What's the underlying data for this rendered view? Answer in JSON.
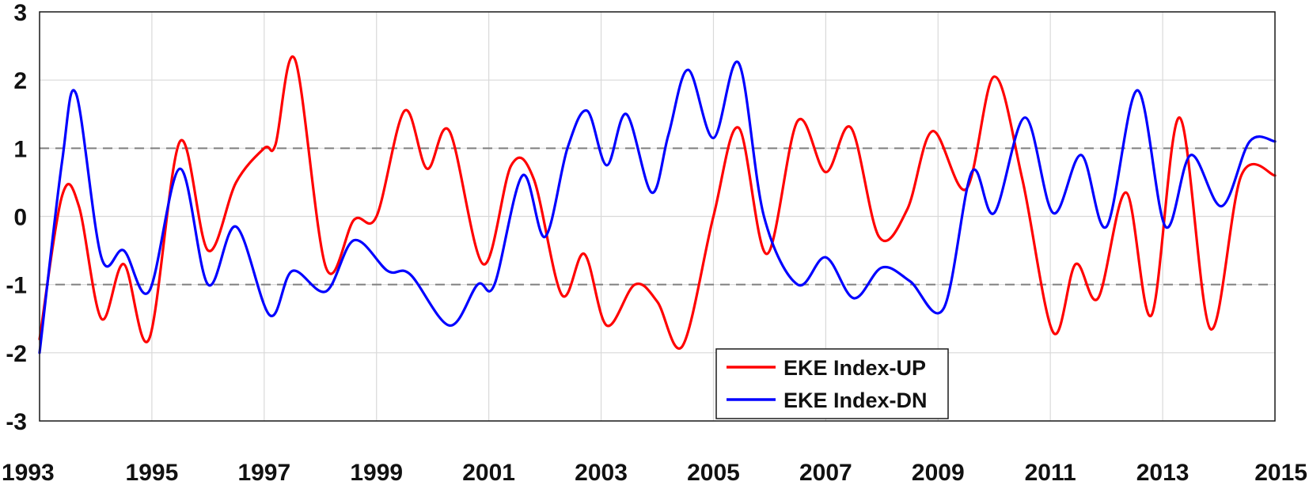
{
  "chart_data": {
    "type": "line",
    "title": "",
    "xlabel": "",
    "ylabel": "",
    "xlim": [
      1993,
      2015
    ],
    "ylim": [
      -3,
      3
    ],
    "grid": true,
    "x_ticks": [
      1993,
      1995,
      1997,
      1999,
      2001,
      2003,
      2005,
      2007,
      2009,
      2011,
      2013,
      2015
    ],
    "x_tick_labels": [
      "1993",
      "1995",
      "1997",
      "1999",
      "2001",
      "2003",
      "2005",
      "2007",
      "2009",
      "2011",
      "2013",
      "2015"
    ],
    "y_ticks": [
      -3,
      -2,
      -1,
      0,
      1,
      2,
      3
    ],
    "y_tick_labels": [
      "-3",
      "-2",
      "-1",
      "0",
      "1",
      "2",
      "3"
    ],
    "reference_lines": [
      1,
      -1
    ],
    "legend_position": "bottom-center",
    "series": [
      {
        "name": "EKE Index-UP",
        "color": "#ff0000",
        "x": [
          1993.0,
          1993.4,
          1993.7,
          1994.1,
          1994.5,
          1994.95,
          1995.5,
          1996.0,
          1996.5,
          1997.0,
          1997.2,
          1997.55,
          1998.1,
          1998.6,
          1999.0,
          1999.5,
          1999.9,
          2000.3,
          2000.9,
          2001.4,
          2001.8,
          2002.3,
          2002.7,
          2003.1,
          2003.6,
          2004.0,
          2004.45,
          2005.0,
          2005.45,
          2005.95,
          2006.5,
          2007.0,
          2007.45,
          2007.95,
          2008.45,
          2008.9,
          2009.5,
          2010.0,
          2010.5,
          2011.05,
          2011.45,
          2011.85,
          2012.35,
          2012.8,
          2013.3,
          2013.85,
          2014.4,
          2015.0
        ],
        "values": [
          -1.8,
          0.3,
          0.15,
          -1.5,
          -0.7,
          -1.8,
          1.1,
          -0.5,
          0.5,
          1.0,
          1.05,
          2.3,
          -0.75,
          -0.05,
          0.0,
          1.55,
          0.7,
          1.25,
          -0.7,
          0.75,
          0.55,
          -1.15,
          -0.55,
          -1.6,
          -1.0,
          -1.25,
          -1.9,
          0.0,
          1.3,
          -0.55,
          1.4,
          0.65,
          1.3,
          -0.3,
          0.1,
          1.25,
          0.4,
          2.05,
          0.55,
          -1.7,
          -0.7,
          -1.2,
          0.35,
          -1.45,
          1.45,
          -1.65,
          0.6,
          0.6
        ]
      },
      {
        "name": "EKE Index-DN",
        "color": "#0000ff",
        "x": [
          1993.0,
          1993.4,
          1993.65,
          1994.1,
          1994.5,
          1994.95,
          1995.5,
          1996.0,
          1996.5,
          1997.1,
          1997.5,
          1998.1,
          1998.6,
          1999.2,
          1999.6,
          2000.3,
          2000.8,
          2001.1,
          2001.6,
          2002.0,
          2002.4,
          2002.75,
          2003.1,
          2003.45,
          2003.9,
          2004.2,
          2004.55,
          2005.0,
          2005.45,
          2005.9,
          2006.5,
          2007.0,
          2007.5,
          2008.0,
          2008.5,
          2009.1,
          2009.6,
          2010.0,
          2010.55,
          2011.05,
          2011.55,
          2012.0,
          2012.55,
          2013.05,
          2013.5,
          2014.05,
          2014.55,
          2015.0
        ],
        "values": [
          -2.0,
          0.8,
          1.8,
          -0.6,
          -0.5,
          -1.1,
          0.7,
          -1.0,
          -0.15,
          -1.45,
          -0.8,
          -1.1,
          -0.35,
          -0.8,
          -0.85,
          -1.6,
          -1.0,
          -1.0,
          0.6,
          -0.3,
          1.0,
          1.55,
          0.75,
          1.5,
          0.35,
          1.2,
          2.15,
          1.15,
          2.25,
          0.0,
          -1.0,
          -0.6,
          -1.2,
          -0.75,
          -0.95,
          -1.35,
          0.65,
          0.05,
          1.45,
          0.05,
          0.9,
          -0.15,
          1.85,
          -0.15,
          0.9,
          0.15,
          1.1,
          1.1
        ]
      }
    ]
  }
}
